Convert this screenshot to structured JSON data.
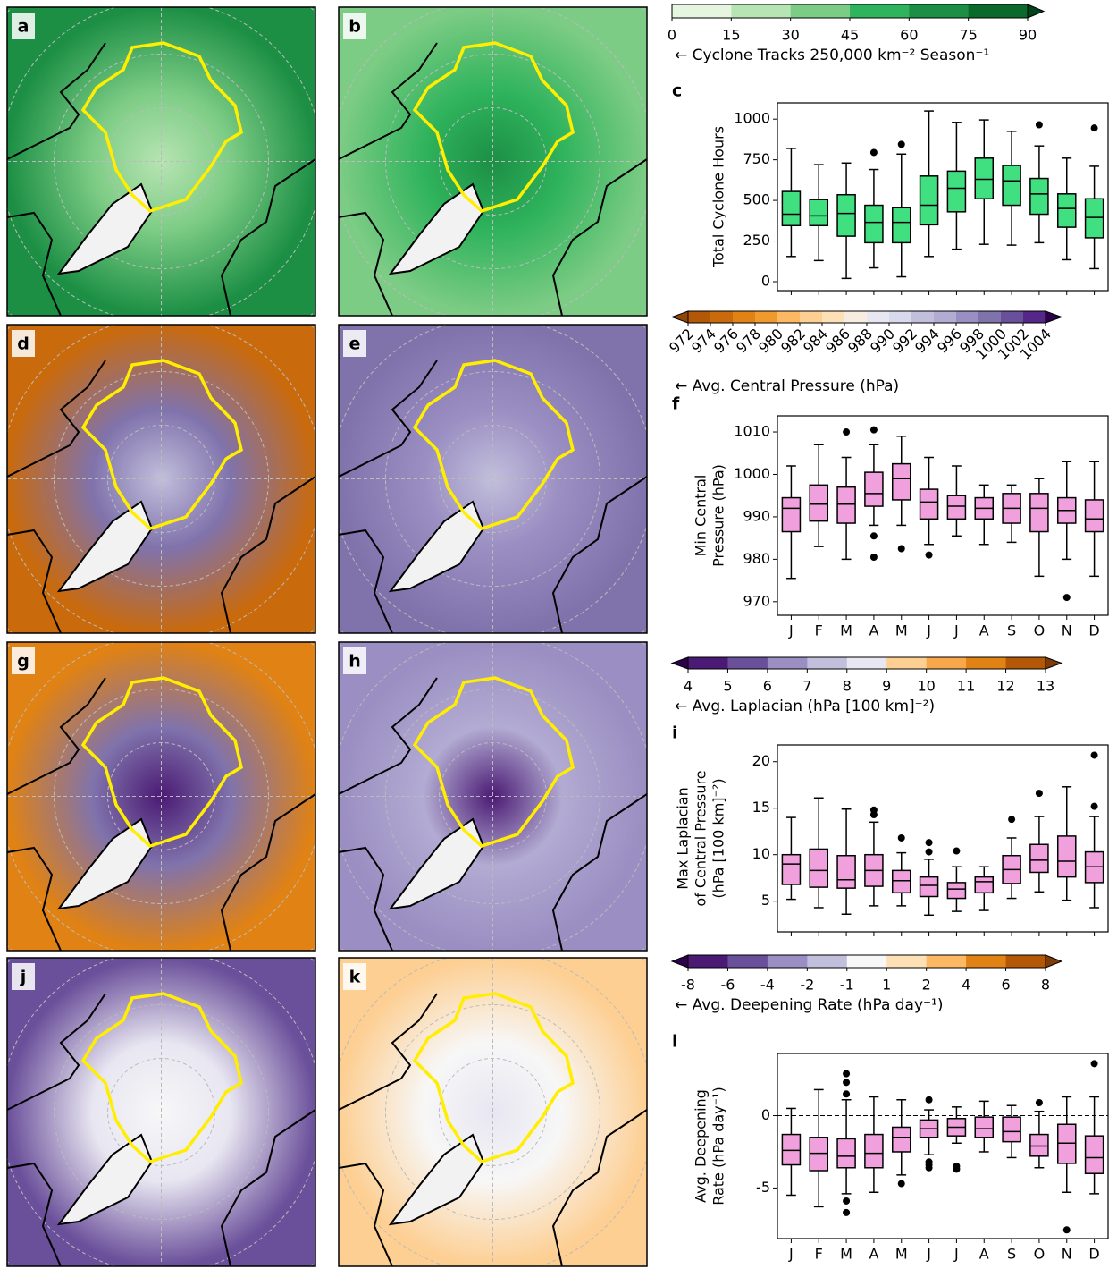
{
  "chart_data": [
    {
      "type": "map",
      "panel_label": "a",
      "colors": [
        "#1c8f45",
        "#7dcc85",
        "#b7e4b3"
      ]
    },
    {
      "type": "map",
      "panel_label": "b",
      "colors": [
        "#7dcc85",
        "#2fb35c",
        "#1c8f45"
      ]
    },
    {
      "type": "colorbar",
      "label": "← Cyclone Tracks 250,000 km⁻² Season⁻¹",
      "ticks": [
        0,
        15,
        30,
        45,
        60,
        75,
        90
      ],
      "colors": [
        "#e5f5e0",
        "#b7e4b3",
        "#7dcc85",
        "#2fb35c",
        "#1c8f45",
        "#0a6a2c"
      ],
      "extend": "max",
      "extend_colors": [
        null,
        "#00441b"
      ],
      "tick_rotation": 0
    },
    {
      "type": "boxplot",
      "panel_label": "c",
      "ylabel": [
        "Total Cyclone Hours"
      ],
      "color": "#40e080",
      "ylim": [
        -55,
        1100
      ],
      "yticks": [
        0,
        250,
        500,
        750,
        1000
      ],
      "boxes": [
        {
          "whislo": 155,
          "q1": 345,
          "med": 415,
          "q3": 555,
          "whishi": 820,
          "fliers": []
        },
        {
          "whislo": 130,
          "q1": 345,
          "med": 405,
          "q3": 505,
          "whishi": 720,
          "fliers": []
        },
        {
          "whislo": 20,
          "q1": 280,
          "med": 420,
          "q3": 535,
          "whishi": 730,
          "fliers": []
        },
        {
          "whislo": 85,
          "q1": 240,
          "med": 365,
          "q3": 470,
          "whishi": 690,
          "fliers": [
            795
          ]
        },
        {
          "whislo": 30,
          "q1": 240,
          "med": 365,
          "q3": 455,
          "whishi": 785,
          "fliers": [
            845
          ]
        },
        {
          "whislo": 155,
          "q1": 350,
          "med": 470,
          "q3": 650,
          "whishi": 1050,
          "fliers": []
        },
        {
          "whislo": 200,
          "q1": 430,
          "med": 575,
          "q3": 680,
          "whishi": 980,
          "fliers": []
        },
        {
          "whislo": 230,
          "q1": 510,
          "med": 630,
          "q3": 760,
          "whishi": 995,
          "fliers": []
        },
        {
          "whislo": 225,
          "q1": 470,
          "med": 620,
          "q3": 715,
          "whishi": 925,
          "fliers": []
        },
        {
          "whislo": 240,
          "q1": 415,
          "med": 540,
          "q3": 635,
          "whishi": 835,
          "fliers": [
            965
          ]
        },
        {
          "whislo": 135,
          "q1": 335,
          "med": 450,
          "q3": 540,
          "whishi": 760,
          "fliers": []
        },
        {
          "whislo": 80,
          "q1": 270,
          "med": 395,
          "q3": 510,
          "whishi": 710,
          "fliers": [
            945
          ]
        }
      ]
    },
    {
      "type": "map",
      "panel_label": "d",
      "colors": [
        "#c96a0d",
        "#8073ac",
        "#c2bfdc"
      ]
    },
    {
      "type": "map",
      "panel_label": "e",
      "colors": [
        "#8073ac",
        "#9a8ec2",
        "#c2bfdc"
      ]
    },
    {
      "type": "colorbar",
      "label": "← Avg. Central Pressure (hPa)",
      "ticks": [
        972,
        974,
        976,
        978,
        980,
        982,
        984,
        986,
        988,
        990,
        992,
        994,
        996,
        998,
        1000,
        1002,
        1004
      ],
      "colors": [
        "#b35806",
        "#c96a0d",
        "#e08214",
        "#f09a2e",
        "#fdb863",
        "#fdcf93",
        "#fee0b6",
        "#f7ecdf",
        "#e8e6f1",
        "#d8daeb",
        "#c2bfdc",
        "#b2abd2",
        "#9a8ec2",
        "#8073ac",
        "#6a4f9a",
        "#542788"
      ],
      "extend": "both",
      "extend_colors": [
        "#8f4506",
        "#2d004b"
      ],
      "tick_rotation": 45
    },
    {
      "type": "boxplot",
      "panel_label": "f",
      "ylabel": [
        "Min Central",
        "Pressure (hPa)"
      ],
      "color": "#f0a0dc",
      "ylim": [
        966.8,
        1013.8
      ],
      "yticks": [
        970,
        980,
        990,
        1000,
        1010
      ],
      "categories": [
        "J",
        "F",
        "M",
        "A",
        "M",
        "J",
        "J",
        "A",
        "S",
        "O",
        "N",
        "D"
      ],
      "boxes": [
        {
          "whislo": 975.5,
          "q1": 986.5,
          "med": 992,
          "q3": 994.5,
          "whishi": 1002,
          "fliers": []
        },
        {
          "whislo": 983,
          "q1": 989,
          "med": 993,
          "q3": 997.5,
          "whishi": 1007,
          "fliers": []
        },
        {
          "whislo": 980,
          "q1": 988.5,
          "med": 993,
          "q3": 997,
          "whishi": 1004,
          "fliers": [
            1010
          ]
        },
        {
          "whislo": 988,
          "q1": 992.5,
          "med": 995.5,
          "q3": 1000.5,
          "whishi": 1007,
          "fliers": [
            1010.5,
            985.5,
            980.5
          ]
        },
        {
          "whislo": 988,
          "q1": 994,
          "med": 999,
          "q3": 1002.5,
          "whishi": 1009,
          "fliers": [
            982.5
          ]
        },
        {
          "whislo": 983.5,
          "q1": 989.5,
          "med": 993.5,
          "q3": 996.5,
          "whishi": 1004,
          "fliers": [
            981
          ]
        },
        {
          "whislo": 985.5,
          "q1": 989.5,
          "med": 992.5,
          "q3": 995,
          "whishi": 1002,
          "fliers": []
        },
        {
          "whislo": 983.5,
          "q1": 989.5,
          "med": 992,
          "q3": 994.5,
          "whishi": 997.5,
          "fliers": []
        },
        {
          "whislo": 984,
          "q1": 988.5,
          "med": 992,
          "q3": 995.5,
          "whishi": 997.5,
          "fliers": []
        },
        {
          "whislo": 976,
          "q1": 986.5,
          "med": 992,
          "q3": 995.5,
          "whishi": 999,
          "fliers": []
        },
        {
          "whislo": 980,
          "q1": 988.5,
          "med": 991.5,
          "q3": 994.5,
          "whishi": 1003,
          "fliers": [
            971
          ]
        },
        {
          "whislo": 976,
          "q1": 986.5,
          "med": 989.5,
          "q3": 994,
          "whishi": 1003,
          "fliers": []
        }
      ]
    },
    {
      "type": "map",
      "panel_label": "g",
      "colors": [
        "#e08214",
        "#8073ac",
        "#4b1a74"
      ]
    },
    {
      "type": "map",
      "panel_label": "h",
      "colors": [
        "#9a8ec2",
        "#b2abd2",
        "#4b1a74"
      ]
    },
    {
      "type": "colorbar",
      "label": "← Avg. Laplacian (hPa [100 km]⁻²)",
      "ticks": [
        4,
        5,
        6,
        7,
        8,
        9,
        10,
        11,
        12,
        13
      ],
      "colors": [
        "#4b1a74",
        "#6a4f9a",
        "#9a8ec2",
        "#c2bfdc",
        "#e8e6f1",
        "#fdcf93",
        "#f8a84a",
        "#e08214",
        "#b35806"
      ],
      "extend": "both",
      "extend_colors": [
        "#2d004b",
        "#7f3b08"
      ],
      "tick_rotation": 0
    },
    {
      "type": "boxplot",
      "panel_label": "i",
      "ylabel": [
        "Max Laplacian",
        "of Central Pressure",
        "(hPa [100 km]⁻²)"
      ],
      "color": "#f0a0dc",
      "ylim": [
        1.7,
        21.8
      ],
      "yticks": [
        5,
        10,
        15,
        20
      ],
      "boxes": [
        {
          "whislo": 5.2,
          "q1": 6.8,
          "med": 9,
          "q3": 10,
          "whishi": 14,
          "fliers": []
        },
        {
          "whislo": 4.3,
          "q1": 6.5,
          "med": 8.3,
          "q3": 10.6,
          "whishi": 16.1,
          "fliers": []
        },
        {
          "whislo": 3.6,
          "q1": 6.4,
          "med": 7.3,
          "q3": 9.9,
          "whishi": 14.9,
          "fliers": []
        },
        {
          "whislo": 4.5,
          "q1": 6.6,
          "med": 8.3,
          "q3": 10,
          "whishi": 13.5,
          "fliers": [
            14.8,
            14.3
          ]
        },
        {
          "whislo": 4.5,
          "q1": 5.9,
          "med": 7.2,
          "q3": 8.3,
          "whishi": 10.2,
          "fliers": [
            11.8
          ]
        },
        {
          "whislo": 3.5,
          "q1": 5.5,
          "med": 6.7,
          "q3": 7.6,
          "whishi": 9.5,
          "fliers": [
            11.3,
            10.3
          ]
        },
        {
          "whislo": 3.9,
          "q1": 5.3,
          "med": 6.3,
          "q3": 7,
          "whishi": 8.7,
          "fliers": [
            10.4
          ]
        },
        {
          "whislo": 4,
          "q1": 5.9,
          "med": 7.1,
          "q3": 7.6,
          "whishi": 8.7,
          "fliers": []
        },
        {
          "whislo": 5.3,
          "q1": 6.9,
          "med": 8.4,
          "q3": 9.9,
          "whishi": 11.8,
          "fliers": [
            13.8
          ]
        },
        {
          "whislo": 6,
          "q1": 8.1,
          "med": 9.4,
          "q3": 11.1,
          "whishi": 14.1,
          "fliers": [
            16.6
          ]
        },
        {
          "whislo": 5.1,
          "q1": 7.6,
          "med": 9.3,
          "q3": 12,
          "whishi": 17.3,
          "fliers": []
        },
        {
          "whislo": 4.3,
          "q1": 7,
          "med": 8.7,
          "q3": 10.3,
          "whishi": 14.1,
          "fliers": [
            20.7,
            15.2
          ]
        }
      ]
    },
    {
      "type": "map",
      "panel_label": "j",
      "colors": [
        "#6a4f9a",
        "#e8e6f1",
        "#f7f7f7"
      ]
    },
    {
      "type": "map",
      "panel_label": "k",
      "colors": [
        "#fdcf93",
        "#f7f7f7",
        "#e8e6f1"
      ]
    },
    {
      "type": "colorbar",
      "label": "← Avg. Deepening Rate (hPa day⁻¹)",
      "ticks": [
        -8,
        -6,
        -4,
        -2,
        -1,
        1,
        2,
        4,
        6,
        8
      ],
      "colors": [
        "#4b1a74",
        "#6a4f9a",
        "#9a8ec2",
        "#c2bfdc",
        "#f7f7f7",
        "#fee0b6",
        "#fdb863",
        "#e08214",
        "#b35806"
      ],
      "extend": "both",
      "extend_colors": [
        "#2d004b",
        "#7f3b08"
      ],
      "tick_rotation": 0
    },
    {
      "type": "boxplot",
      "panel_label": "l",
      "ylabel": [
        "Avg. Deepening",
        "Rate (hPa day⁻¹)"
      ],
      "color": "#f0a0dc",
      "ylim": [
        -8.5,
        4.3
      ],
      "yticks": [
        -5,
        0
      ],
      "reference_line": 0,
      "categories": [
        "J",
        "F",
        "M",
        "A",
        "M",
        "J",
        "J",
        "A",
        "S",
        "O",
        "N",
        "D"
      ],
      "boxes": [
        {
          "whislo": -5.5,
          "q1": -3.4,
          "med": -2.4,
          "q3": -1.3,
          "whishi": 0.5,
          "fliers": []
        },
        {
          "whislo": -6.3,
          "q1": -3.8,
          "med": -2.6,
          "q3": -1.5,
          "whishi": 1.8,
          "fliers": []
        },
        {
          "whislo": -5.4,
          "q1": -3.6,
          "med": -2.8,
          "q3": -1.6,
          "whishi": 1.1,
          "fliers": [
            2.9,
            2.3,
            1.5,
            -5.9,
            -6.7
          ]
        },
        {
          "whislo": -5.3,
          "q1": -3.6,
          "med": -2.6,
          "q3": -1.3,
          "whishi": 1.3,
          "fliers": []
        },
        {
          "whislo": -4.1,
          "q1": -2.5,
          "med": -1.5,
          "q3": -0.8,
          "whishi": 1.1,
          "fliers": [
            -4.7
          ]
        },
        {
          "whislo": -2.7,
          "q1": -1.5,
          "med": -0.9,
          "q3": -0.3,
          "whishi": 0.4,
          "fliers": [
            1.1,
            -3.2,
            -3.6,
            -3.4
          ]
        },
        {
          "whislo": -1.9,
          "q1": -1.4,
          "med": -0.8,
          "q3": -0.2,
          "whishi": 0.6,
          "fliers": [
            -3.5,
            -3.7
          ]
        },
        {
          "whislo": -2.5,
          "q1": -1.5,
          "med": -0.9,
          "q3": -0.1,
          "whishi": 1,
          "fliers": []
        },
        {
          "whislo": -2.9,
          "q1": -1.8,
          "med": -1.1,
          "q3": -0.1,
          "whishi": 0.7,
          "fliers": []
        },
        {
          "whislo": -3.6,
          "q1": -2.8,
          "med": -2.1,
          "q3": -1.3,
          "whishi": 0.3,
          "fliers": [
            0.9
          ]
        },
        {
          "whislo": -5.3,
          "q1": -3.3,
          "med": -1.9,
          "q3": -0.6,
          "whishi": 1.3,
          "fliers": [
            -7.9
          ]
        },
        {
          "whislo": -5.4,
          "q1": -4,
          "med": -2.9,
          "q3": -1.4,
          "whishi": 1.3,
          "fliers": [
            3.6
          ]
        }
      ]
    }
  ]
}
